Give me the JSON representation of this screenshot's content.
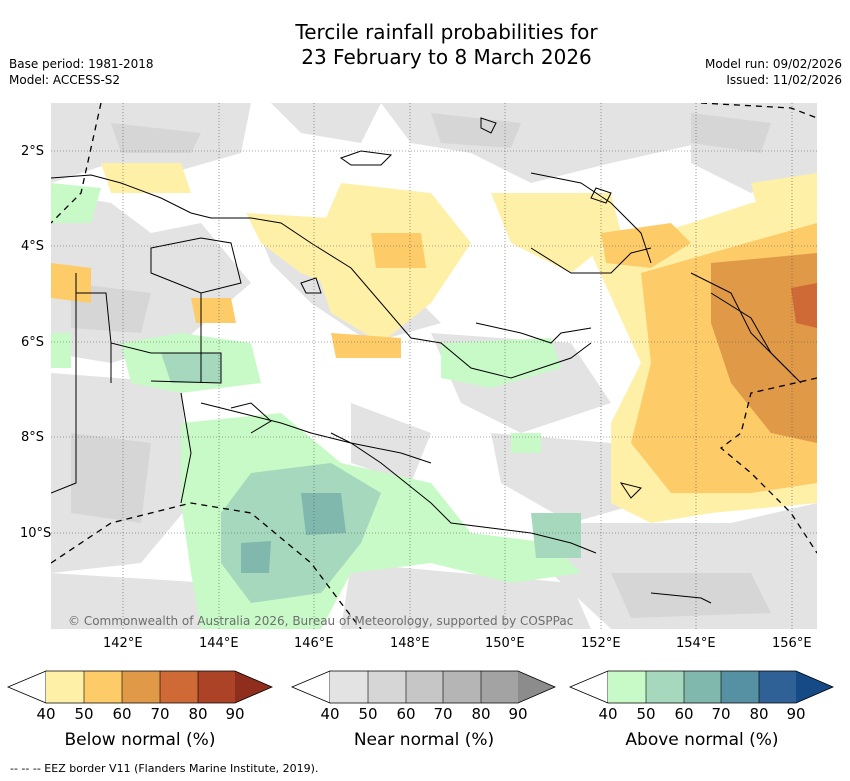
{
  "title": {
    "line1": "Tercile rainfall probabilities for",
    "line2": "23 February to 8 March 2026"
  },
  "meta": {
    "base_period": "Base period: 1981-2018",
    "model": "Model: ACCESS-S2",
    "model_run": "Model run: 09/02/2026",
    "issued": "Issued: 11/02/2026"
  },
  "map": {
    "lat_labels": [
      "2°S",
      "4°S",
      "6°S",
      "8°S",
      "10°S"
    ],
    "lon_labels": [
      "142°E",
      "144°E",
      "146°E",
      "148°E",
      "150°E",
      "152°E",
      "154°E",
      "156°E"
    ],
    "copyright": "© Commonwealth of Australia 2026, Bureau of Meteorology, supported by COSPPac"
  },
  "colorbars": [
    {
      "label": "Below normal (%)",
      "ticks": [
        "40",
        "50",
        "60",
        "70",
        "80",
        "90"
      ],
      "colors": [
        "#fff0a8",
        "#fdcb68",
        "#e09a47",
        "#cf6a36",
        "#ad4326",
        "#8f2e1d"
      ]
    },
    {
      "label": "Near normal (%)",
      "ticks": [
        "40",
        "50",
        "60",
        "70",
        "80",
        "90"
      ],
      "colors": [
        "#e3e3e3",
        "#d6d6d6",
        "#c6c6c6",
        "#b5b5b5",
        "#a3a3a3",
        "#8c8c8c"
      ]
    },
    {
      "label": "Above normal (%)",
      "ticks": [
        "40",
        "50",
        "60",
        "70",
        "80",
        "90"
      ],
      "colors": [
        "#c8fac8",
        "#a5d8bc",
        "#81b8ad",
        "#5690a3",
        "#2f6096",
        "#164a85"
      ]
    }
  ],
  "legend": {
    "eez": "--  --  -- EEZ border V11 (Flanders Marine Institute, 2019)."
  }
}
